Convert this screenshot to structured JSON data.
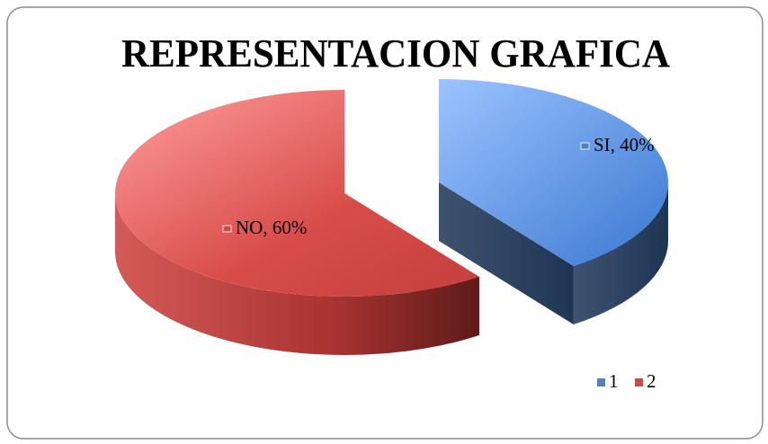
{
  "chart_data": {
    "type": "pie",
    "title": "REPRESENTACION GRAFICA",
    "categories": [
      "1",
      "2"
    ],
    "values": [
      40,
      60
    ],
    "value_labels": [
      "SI, 40%",
      "NO, 60%"
    ],
    "colors": [
      "#4f81bd",
      "#c0504d"
    ],
    "legend": "bottom-right"
  }
}
